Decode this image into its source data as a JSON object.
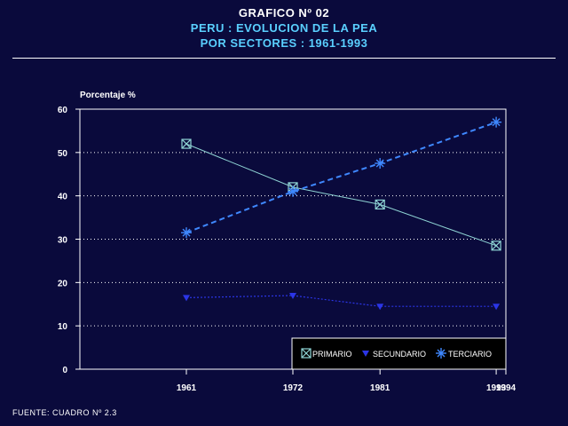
{
  "header": {
    "number": "GRAFICO Nº 02",
    "title": "PERU : EVOLUCION DE LA PEA",
    "subtitle": "POR SECTORES : 1961-1993"
  },
  "footer": {
    "source": "FUENTE: CUADRO Nº 2.3"
  },
  "colors": {
    "background": "#0a0a3c",
    "title_white": "#ffffff",
    "title_cyan": "#5ad0ff",
    "primario": "#8fd4d4",
    "secundario": "#2b35e6",
    "terciario": "#3f88ff"
  },
  "chart_data": {
    "type": "line",
    "ylabel": "Porcentaje %",
    "xlabel": "",
    "ylim": [
      0,
      60
    ],
    "yticks": [
      0,
      10,
      20,
      30,
      40,
      50,
      60
    ],
    "xlim": [
      1950,
      1994
    ],
    "xticks": [
      1961,
      1972,
      1981,
      1993,
      1994
    ],
    "grid": true,
    "legend_position": "bottom-right",
    "series": [
      {
        "name": "PRIMARIO",
        "marker": "boxed-x",
        "x": [
          1961,
          1972,
          1981,
          1993
        ],
        "values": [
          52,
          42,
          38,
          28.5
        ]
      },
      {
        "name": "SECUNDARIO",
        "marker": "triangle-down",
        "x": [
          1961,
          1972,
          1981,
          1993
        ],
        "values": [
          16.5,
          17,
          14.5,
          14.5
        ]
      },
      {
        "name": "TERCIARIO",
        "marker": "asterisk",
        "x": [
          1961,
          1972,
          1981,
          1993
        ],
        "values": [
          31.5,
          41,
          47.5,
          57
        ]
      }
    ]
  }
}
